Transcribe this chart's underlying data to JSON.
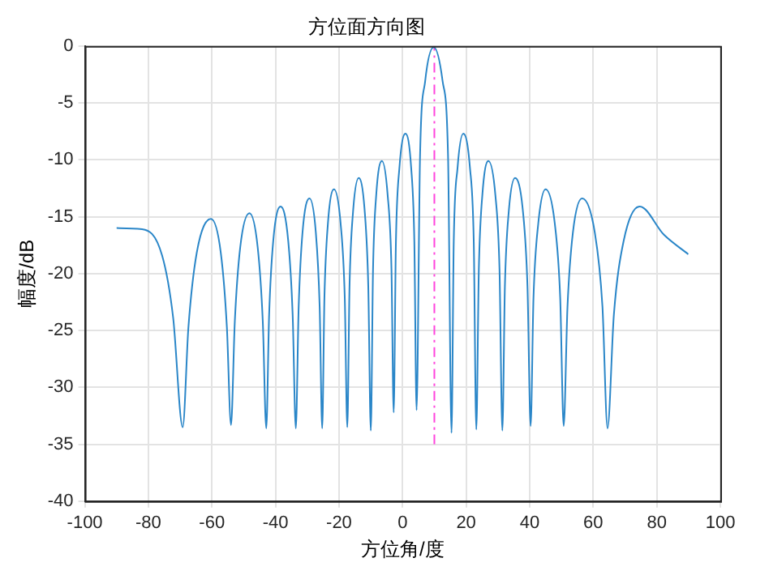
{
  "chart_data": {
    "type": "line",
    "title": "方位面方向图",
    "xlabel": "方位角/度",
    "ylabel": "幅度/dB",
    "xlim": [
      -100,
      100
    ],
    "xticks": [
      -100,
      -80,
      -60,
      -40,
      -20,
      0,
      20,
      40,
      60,
      80,
      100
    ],
    "ylim": [
      -40,
      0
    ],
    "yticks": [
      -40,
      -35,
      -30,
      -25,
      -20,
      -15,
      -10,
      -5,
      0
    ],
    "grid": true,
    "legend": false,
    "series": [
      {
        "color": "#2a86c8",
        "line_style": "solid",
        "x": [
          -90,
          -82,
          -75.7,
          -72.2,
          -69.2,
          -67.4,
          -64.8,
          -60.3,
          -57.2,
          -55.3,
          -54,
          -52.8,
          -51.1,
          -48.2,
          -45.6,
          -44.0,
          -42.9,
          -42.0,
          -40.7,
          -38.4,
          -36.0,
          -34.6,
          -33.6,
          -32.7,
          -31.5,
          -29.3,
          -27.3,
          -26.1,
          -25.3,
          -24.6,
          -23.5,
          -21.6,
          -19.5,
          -18.2,
          -17.4,
          -16.7,
          -15.6,
          -13.8,
          -11.9,
          -10.8,
          -10,
          -9.3,
          -8.3,
          -6.5,
          -4.7,
          -3.5,
          -2.8,
          -2.1,
          -1.0,
          0.9,
          2.7,
          3.7,
          4.4,
          5.5,
          7.1,
          9.8,
          12.6,
          14.3,
          15.4,
          16.1,
          17.3,
          19.1,
          21.2,
          22.4,
          23.2,
          24.0,
          25.1,
          27,
          29.2,
          30.5,
          31.4,
          32.2,
          33.4,
          35.4,
          37.9,
          39.3,
          40.3,
          41.2,
          42.7,
          45,
          47.9,
          49.6,
          50.7,
          51.9,
          53.6,
          56.5,
          60.5,
          62.9,
          64.5,
          66.5,
          69.6,
          74.6,
          82.3,
          89.9
        ],
        "values": [
          -16.0,
          -16.1,
          -18.4,
          -23.9,
          -33.5,
          -24.7,
          -18.2,
          -15.2,
          -18.2,
          -24.7,
          -33.3,
          -24.2,
          -17.7,
          -14.7,
          -17.7,
          -24.2,
          -33.6,
          -23.6,
          -17.1,
          -14.1,
          -17.1,
          -23.6,
          -33.6,
          -22.9,
          -16.4,
          -13.4,
          -16.4,
          -22.9,
          -33.6,
          -22.1,
          -15.6,
          -12.6,
          -15.6,
          -22.1,
          -33.5,
          -21.1,
          -14.6,
          -11.6,
          -14.6,
          -21.1,
          -33.8,
          -19.6,
          -13.1,
          -10.1,
          -13.1,
          -19.6,
          -32.2,
          -17.2,
          -10.7,
          -7.7,
          -10.7,
          -17.2,
          -32.0,
          -9.6,
          -3.1,
          -0.1,
          -3.1,
          -9.6,
          -34.0,
          -17.2,
          -10.7,
          -7.7,
          -10.7,
          -17.2,
          -33.7,
          -19.6,
          -13.1,
          -10.1,
          -13.1,
          -19.6,
          -33.8,
          -21.1,
          -14.6,
          -11.6,
          -14.6,
          -21.1,
          -33.4,
          -22.1,
          -15.6,
          -12.6,
          -15.6,
          -22.1,
          -33.4,
          -22.9,
          -16.4,
          -13.4,
          -16.4,
          -22.9,
          -33.6,
          -23.6,
          -17.1,
          -14.1,
          -16.6,
          -18.3
        ]
      },
      {
        "color": "#ff44dd",
        "line_style": "dashed",
        "x": [
          10,
          10
        ],
        "values": [
          -35,
          0
        ]
      }
    ]
  }
}
